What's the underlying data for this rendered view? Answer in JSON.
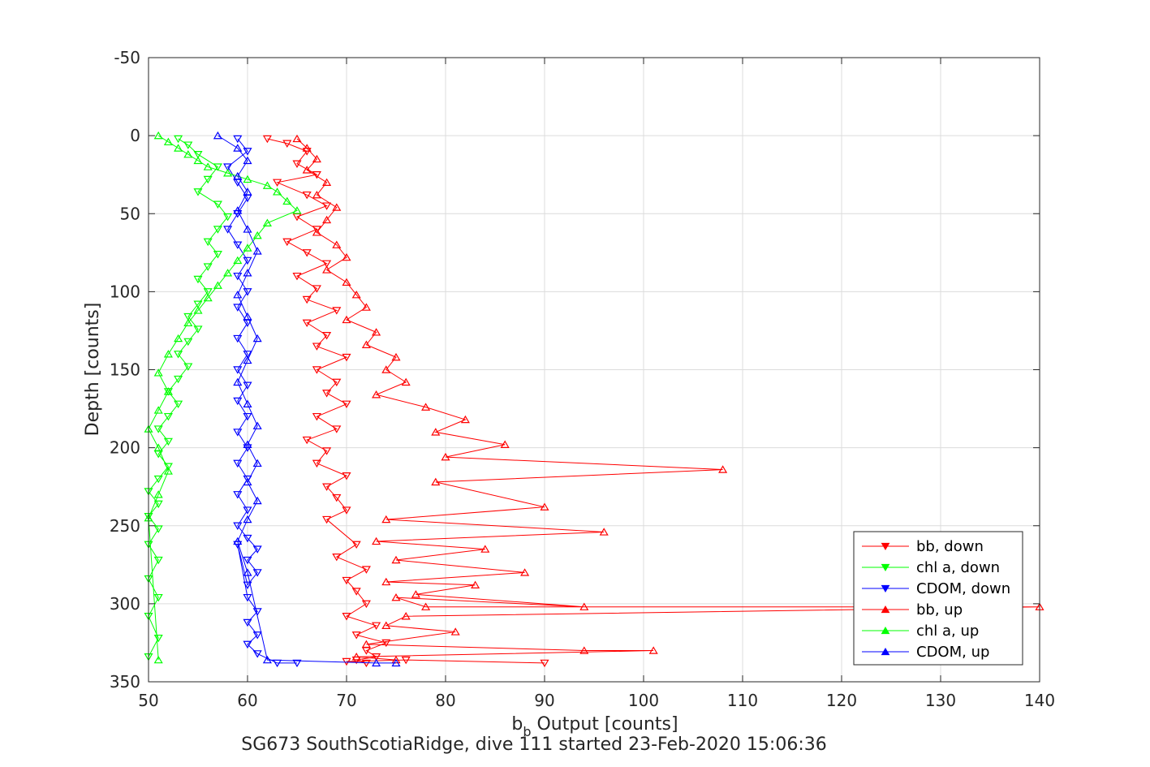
{
  "chart_data": {
    "type": "line",
    "title": "",
    "xlabel_main": "b",
    "xlabel_sub": "b",
    "xlabel_rest": " Output [counts]",
    "ylabel": "Depth [counts]",
    "caption": "SG673 SouthScotiaRidge, dive 111 started 23-Feb-2020 15:06:36",
    "xlim": [
      50,
      140
    ],
    "ylim": [
      -50,
      350
    ],
    "y_reversed": true,
    "grid": true,
    "xticks": [
      "50",
      "60",
      "70",
      "80",
      "90",
      "100",
      "110",
      "120",
      "130",
      "140"
    ],
    "yticks": [
      "-50",
      "0",
      "50",
      "100",
      "150",
      "200",
      "250",
      "300",
      "350"
    ],
    "legend_position": "bottom-right",
    "legend": [
      {
        "label": "bb, down",
        "color": "#ff0000",
        "marker": "down"
      },
      {
        "label": "chl a, down",
        "color": "#00ff00",
        "marker": "down"
      },
      {
        "label": "CDOM, down",
        "color": "#0000ff",
        "marker": "down"
      },
      {
        "label": "bb, up",
        "color": "#ff0000",
        "marker": "up"
      },
      {
        "label": "chl a, up",
        "color": "#00ff00",
        "marker": "up"
      },
      {
        "label": "CDOM, up",
        "color": "#0000ff",
        "marker": "up"
      }
    ],
    "series": [
      {
        "name": "bb, down",
        "color": "#ff0000",
        "marker": "down",
        "x": [
          62,
          64,
          66,
          65,
          67,
          63,
          66,
          68,
          65,
          67,
          64,
          66,
          68,
          65,
          67,
          66,
          69,
          66,
          68,
          67,
          70,
          67,
          69,
          68,
          70,
          67,
          69,
          66,
          68,
          67,
          70,
          68,
          69,
          70,
          68,
          71,
          69,
          72,
          70,
          71,
          72,
          70,
          73,
          71,
          74,
          72,
          73,
          71,
          72,
          70,
          76,
          90
        ],
        "y": [
          2,
          5,
          10,
          18,
          25,
          30,
          38,
          45,
          52,
          60,
          68,
          75,
          82,
          90,
          98,
          105,
          112,
          120,
          128,
          135,
          142,
          150,
          158,
          165,
          172,
          180,
          188,
          195,
          202,
          210,
          218,
          225,
          232,
          240,
          246,
          262,
          270,
          278,
          285,
          292,
          300,
          308,
          314,
          320,
          325,
          330,
          334,
          336,
          338,
          337,
          336,
          338
        ]
      },
      {
        "name": "chl a, down",
        "color": "#00ff00",
        "marker": "down",
        "x": [
          53,
          54,
          55,
          57,
          56,
          55,
          57,
          58,
          57,
          56,
          57,
          56,
          55,
          56,
          55,
          54,
          55,
          54,
          53,
          54,
          53,
          52,
          53,
          52,
          51,
          52,
          51,
          52,
          51,
          50,
          51,
          50,
          51,
          50,
          51,
          50,
          51,
          50,
          51,
          50
        ],
        "y": [
          2,
          6,
          12,
          20,
          28,
          36,
          44,
          52,
          60,
          68,
          76,
          84,
          92,
          100,
          108,
          116,
          124,
          132,
          140,
          148,
          156,
          164,
          172,
          180,
          188,
          196,
          204,
          212,
          220,
          228,
          236,
          244,
          252,
          262,
          272,
          284,
          296,
          308,
          322,
          334
        ]
      },
      {
        "name": "CDOM, down",
        "color": "#0000ff",
        "marker": "down",
        "x": [
          59,
          60,
          58,
          59,
          60,
          59,
          58,
          59,
          60,
          59,
          60,
          59,
          60,
          59,
          60,
          59,
          60,
          59,
          60,
          59,
          60,
          59,
          60,
          59,
          60,
          59,
          60,
          61,
          60,
          61,
          60,
          59,
          60,
          61,
          60,
          61,
          60,
          61,
          63,
          65
        ],
        "y": [
          2,
          10,
          20,
          30,
          40,
          50,
          60,
          70,
          80,
          90,
          100,
          110,
          120,
          130,
          140,
          150,
          160,
          170,
          180,
          190,
          200,
          210,
          220,
          230,
          240,
          250,
          258,
          265,
          272,
          280,
          288,
          262,
          296,
          305,
          312,
          320,
          326,
          332,
          338,
          338
        ]
      },
      {
        "name": "bb, up",
        "color": "#ff0000",
        "marker": "up",
        "x": [
          65,
          66,
          67,
          66,
          68,
          67,
          69,
          68,
          67,
          69,
          70,
          68,
          70,
          71,
          72,
          70,
          73,
          72,
          75,
          74,
          76,
          73,
          78,
          82,
          79,
          86,
          80,
          108,
          79,
          90,
          74,
          96,
          73,
          84,
          75,
          88,
          74,
          83,
          77,
          94,
          75,
          78,
          140,
          76,
          74,
          81,
          72,
          94,
          101,
          71,
          75
        ],
        "y": [
          2,
          8,
          15,
          22,
          30,
          38,
          46,
          54,
          62,
          70,
          78,
          86,
          94,
          102,
          110,
          118,
          126,
          134,
          142,
          150,
          158,
          166,
          174,
          182,
          190,
          198,
          206,
          214,
          222,
          238,
          246,
          254,
          260,
          265,
          272,
          280,
          286,
          288,
          294,
          302,
          296,
          302,
          302,
          308,
          314,
          318,
          326,
          330,
          330,
          334,
          336
        ]
      },
      {
        "name": "chl a, up",
        "color": "#00ff00",
        "marker": "up",
        "x": [
          51,
          52,
          53,
          54,
          55,
          56,
          58,
          60,
          62,
          63,
          64,
          65,
          62,
          61,
          60,
          59,
          58,
          57,
          56,
          55,
          54,
          53,
          52,
          51,
          52,
          51,
          50,
          51,
          52,
          51,
          50,
          51
        ],
        "y": [
          0,
          4,
          8,
          12,
          16,
          20,
          24,
          28,
          32,
          36,
          42,
          48,
          56,
          64,
          72,
          80,
          88,
          96,
          104,
          112,
          120,
          130,
          140,
          152,
          164,
          176,
          188,
          200,
          215,
          230,
          245,
          336
        ]
      },
      {
        "name": "CDOM, up",
        "color": "#0000ff",
        "marker": "up",
        "x": [
          57,
          59,
          60,
          59,
          60,
          59,
          60,
          61,
          60,
          59,
          60,
          61,
          60,
          59,
          60,
          61,
          60,
          61,
          60,
          61,
          60,
          59,
          60,
          62,
          73,
          75
        ],
        "y": [
          0,
          8,
          16,
          26,
          36,
          48,
          60,
          74,
          88,
          102,
          116,
          130,
          144,
          158,
          172,
          186,
          198,
          210,
          222,
          234,
          246,
          260,
          280,
          336,
          338,
          338
        ]
      }
    ]
  }
}
